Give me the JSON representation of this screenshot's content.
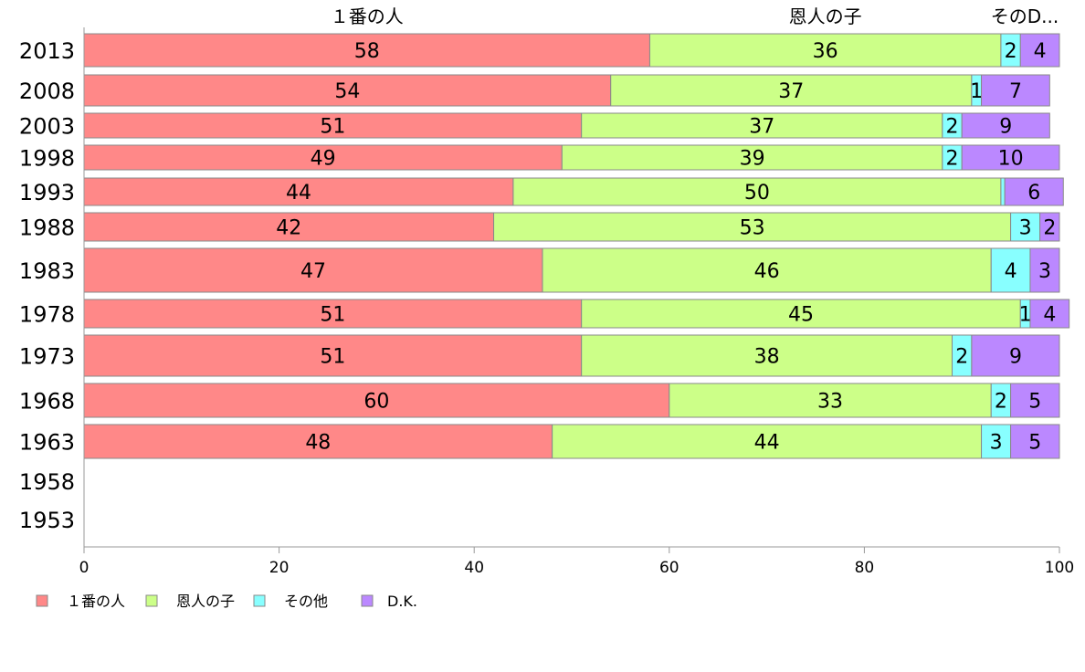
{
  "chart_data": {
    "type": "bar",
    "orientation": "horizontal",
    "stacked": true,
    "categories": [
      "2013",
      "2008",
      "2003",
      "1998",
      "1993",
      "1988",
      "1983",
      "1978",
      "1973",
      "1968",
      "1963",
      "1958",
      "1953"
    ],
    "series": [
      {
        "name": "１番の人",
        "color": "#ff8888",
        "values": [
          58,
          54,
          51,
          49,
          44,
          42,
          47,
          51,
          51,
          60,
          48,
          null,
          null
        ]
      },
      {
        "name": "恩人の子",
        "color": "#ccff88",
        "values": [
          36,
          37,
          37,
          39,
          50,
          53,
          46,
          45,
          38,
          33,
          44,
          null,
          null
        ]
      },
      {
        "name": "その他",
        "color": "#88ffff",
        "values": [
          2,
          1,
          2,
          2,
          0.4,
          3,
          4,
          1,
          2,
          2,
          3,
          null,
          null
        ]
      },
      {
        "name": "D.K.",
        "color": "#bb88ff",
        "values": [
          4,
          7,
          9,
          10,
          6,
          2,
          3,
          4,
          9,
          5,
          5,
          null,
          null
        ]
      }
    ],
    "data_labels": [
      [
        "58",
        "36",
        "2",
        "4"
      ],
      [
        "54",
        "37",
        "1",
        "7"
      ],
      [
        "51",
        "37",
        "2",
        "9"
      ],
      [
        "49",
        "39",
        "2",
        "10"
      ],
      [
        "44",
        "50",
        "",
        "6"
      ],
      [
        "42",
        "53",
        "3",
        "2"
      ],
      [
        "47",
        "46",
        "4",
        "3"
      ],
      [
        "51",
        "45",
        "1",
        "4"
      ],
      [
        "51",
        "38",
        "2",
        "9"
      ],
      [
        "60",
        "33",
        "2",
        "5"
      ],
      [
        "48",
        "44",
        "3",
        "5"
      ],
      [
        "",
        "",
        "",
        ""
      ],
      [
        "",
        "",
        "",
        ""
      ]
    ],
    "top_labels": [
      "１番の人",
      "恩人の子",
      "そのD..."
    ],
    "xlim": [
      0,
      100
    ],
    "xticks": [
      0,
      20,
      40,
      60,
      80,
      100
    ],
    "title": "",
    "xlabel": "",
    "ylabel": "",
    "grid": false,
    "legend_position": "bottom-left"
  }
}
